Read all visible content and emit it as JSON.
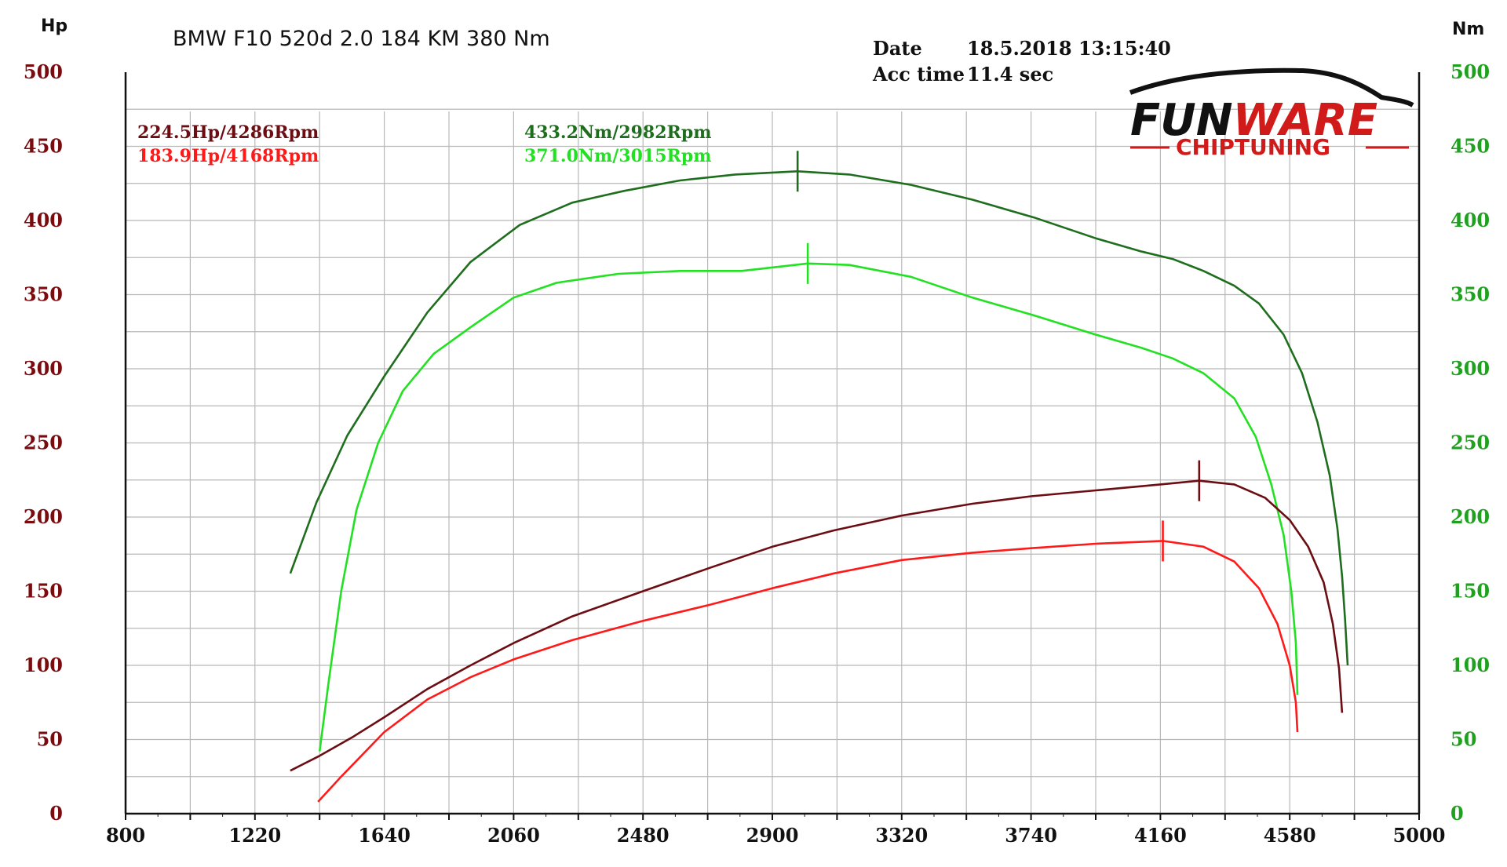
{
  "header": {
    "title": "BMW F10 520d 2.0 184 KM 380 Nm",
    "date_label": "Date",
    "date_value": "18.5.2018 13:15:40",
    "acc_label": "Acc time",
    "acc_value": "11.4 sec"
  },
  "axes": {
    "left_unit": "Hp",
    "right_unit": "Nm"
  },
  "logo": {
    "brand_black": "FUN",
    "brand_red": "WARE",
    "tagline": "CHIPTUNING"
  },
  "annotations": {
    "hp_tuned": "224.5Hp/4286Rpm",
    "hp_stock": "183.9Hp/4168Rpm",
    "nm_tuned": "433.2Nm/2982Rpm",
    "nm_stock": "371.0Nm/3015Rpm"
  },
  "colors": {
    "hp_tuned": "#6b0d12",
    "hp_stock": "#ff1a1a",
    "nm_tuned": "#1e6e1e",
    "nm_stock": "#22e022",
    "left_axis": "#7a0c10",
    "right_axis": "#1fa01f",
    "grid": "#b8b8b8"
  },
  "chart_data": {
    "type": "line",
    "x_ticks": [
      800,
      1220,
      1640,
      2060,
      2480,
      2900,
      3320,
      3740,
      4160,
      4580,
      5000
    ],
    "y_left_ticks": [
      0,
      50,
      100,
      150,
      200,
      250,
      300,
      350,
      400,
      450,
      500
    ],
    "y_right_ticks": [
      0,
      50,
      100,
      150,
      200,
      250,
      300,
      350,
      400,
      450,
      500
    ],
    "xlim": [
      800,
      5000
    ],
    "ylim_left": [
      0,
      500
    ],
    "ylim_right": [
      0,
      500
    ],
    "grid": true,
    "series": [
      {
        "key": "nm_tuned",
        "axis": "right",
        "marker_x": 2982,
        "marker_y": 433.2,
        "points": [
          [
            1335,
            162
          ],
          [
            1420,
            210
          ],
          [
            1520,
            255
          ],
          [
            1640,
            295
          ],
          [
            1780,
            338
          ],
          [
            1920,
            372
          ],
          [
            2080,
            397
          ],
          [
            2250,
            412
          ],
          [
            2420,
            420
          ],
          [
            2600,
            427
          ],
          [
            2780,
            431
          ],
          [
            2982,
            433.2
          ],
          [
            3150,
            431
          ],
          [
            3350,
            424
          ],
          [
            3550,
            414
          ],
          [
            3750,
            402
          ],
          [
            3950,
            388
          ],
          [
            4100,
            379
          ],
          [
            4200,
            374
          ],
          [
            4300,
            366
          ],
          [
            4400,
            356
          ],
          [
            4480,
            344
          ],
          [
            4560,
            323
          ],
          [
            4620,
            297
          ],
          [
            4670,
            264
          ],
          [
            4710,
            228
          ],
          [
            4735,
            192
          ],
          [
            4750,
            160
          ],
          [
            4760,
            130
          ],
          [
            4768,
            100
          ]
        ]
      },
      {
        "key": "nm_stock",
        "axis": "right",
        "marker_x": 3015,
        "marker_y": 371.0,
        "points": [
          [
            1430,
            42
          ],
          [
            1460,
            90
          ],
          [
            1500,
            150
          ],
          [
            1550,
            205
          ],
          [
            1620,
            250
          ],
          [
            1700,
            285
          ],
          [
            1800,
            310
          ],
          [
            1920,
            328
          ],
          [
            2060,
            348
          ],
          [
            2200,
            358
          ],
          [
            2400,
            364
          ],
          [
            2600,
            366
          ],
          [
            2800,
            366
          ],
          [
            3015,
            371
          ],
          [
            3150,
            370
          ],
          [
            3350,
            362
          ],
          [
            3550,
            348
          ],
          [
            3750,
            336
          ],
          [
            3950,
            323
          ],
          [
            4100,
            314
          ],
          [
            4200,
            307
          ],
          [
            4300,
            297
          ],
          [
            4400,
            280
          ],
          [
            4470,
            254
          ],
          [
            4520,
            222
          ],
          [
            4560,
            188
          ],
          [
            4585,
            150
          ],
          [
            4600,
            115
          ],
          [
            4605,
            80
          ]
        ]
      },
      {
        "key": "hp_tuned",
        "axis": "left",
        "marker_x": 4286,
        "marker_y": 224.5,
        "points": [
          [
            1335,
            29
          ],
          [
            1430,
            39
          ],
          [
            1540,
            52
          ],
          [
            1640,
            65
          ],
          [
            1780,
            84
          ],
          [
            1920,
            100
          ],
          [
            2060,
            115
          ],
          [
            2250,
            133
          ],
          [
            2480,
            150
          ],
          [
            2700,
            166
          ],
          [
            2900,
            180
          ],
          [
            3100,
            191
          ],
          [
            3320,
            201
          ],
          [
            3550,
            209
          ],
          [
            3740,
            214
          ],
          [
            3950,
            218
          ],
          [
            4160,
            222
          ],
          [
            4286,
            224.5
          ],
          [
            4400,
            222
          ],
          [
            4500,
            213
          ],
          [
            4580,
            198
          ],
          [
            4640,
            180
          ],
          [
            4690,
            156
          ],
          [
            4720,
            128
          ],
          [
            4740,
            98
          ],
          [
            4750,
            68
          ]
        ]
      },
      {
        "key": "hp_stock",
        "axis": "left",
        "marker_x": 4168,
        "marker_y": 183.9,
        "points": [
          [
            1425,
            8
          ],
          [
            1500,
            25
          ],
          [
            1640,
            55
          ],
          [
            1780,
            77
          ],
          [
            1920,
            92
          ],
          [
            2060,
            104
          ],
          [
            2250,
            117
          ],
          [
            2480,
            130
          ],
          [
            2700,
            141
          ],
          [
            2900,
            152
          ],
          [
            3100,
            162
          ],
          [
            3320,
            171
          ],
          [
            3550,
            176
          ],
          [
            3740,
            179
          ],
          [
            3950,
            182
          ],
          [
            4168,
            183.9
          ],
          [
            4300,
            180
          ],
          [
            4400,
            170
          ],
          [
            4480,
            152
          ],
          [
            4540,
            128
          ],
          [
            4580,
            100
          ],
          [
            4600,
            75
          ],
          [
            4605,
            55
          ]
        ]
      }
    ]
  }
}
